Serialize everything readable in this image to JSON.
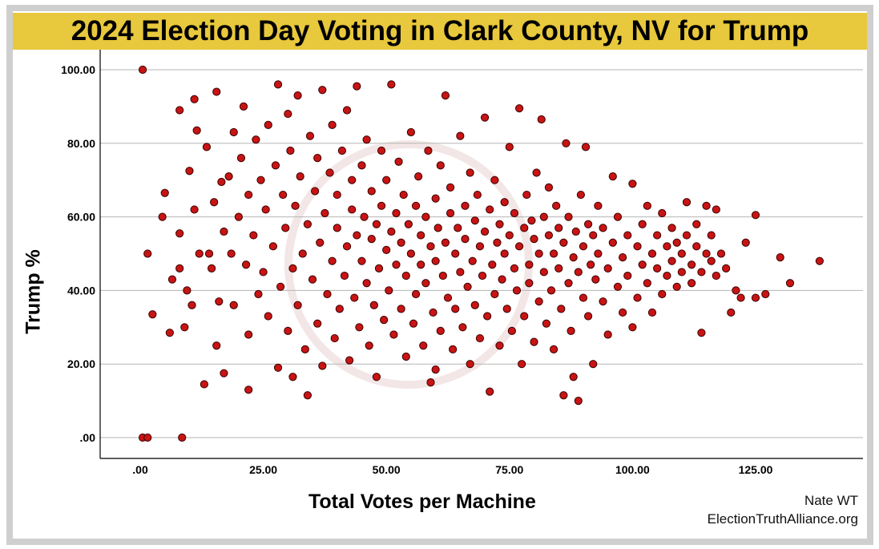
{
  "chart_data": {
    "type": "scatter",
    "title": "2024 Election Day Voting in Clark County, NV for Trump",
    "xlabel": "Total Votes per Machine",
    "ylabel": "Trump %",
    "xlim": [
      -8,
      147
    ],
    "ylim": [
      -6,
      105
    ],
    "xticks": [
      0,
      25,
      50,
      75,
      100,
      125
    ],
    "xtick_labels": [
      ".00",
      "25.00",
      "50.00",
      "75.00",
      "100.00",
      "125.00"
    ],
    "yticks": [
      0,
      20,
      40,
      60,
      80,
      100
    ],
    "ytick_labels": [
      ".00",
      "20.00",
      "40.00",
      "60.00",
      "80.00",
      "100.00"
    ],
    "grid": "horizontal",
    "marker_color": "#c81414",
    "marker_edge": "#3a0000",
    "points": [
      [
        0.5,
        100
      ],
      [
        0.5,
        0
      ],
      [
        1.5,
        0
      ],
      [
        8.5,
        0
      ],
      [
        1.5,
        50
      ],
      [
        2.5,
        33.5
      ],
      [
        6,
        28.5
      ],
      [
        4.5,
        60
      ],
      [
        5,
        66.5
      ],
      [
        6.5,
        43
      ],
      [
        8,
        89
      ],
      [
        8,
        55.5
      ],
      [
        8,
        46
      ],
      [
        9,
        30
      ],
      [
        9.5,
        40
      ],
      [
        10,
        72.5
      ],
      [
        10.5,
        36
      ],
      [
        11,
        62
      ],
      [
        11,
        92
      ],
      [
        11.5,
        83.5
      ],
      [
        12,
        50
      ],
      [
        13,
        14.5
      ],
      [
        13.5,
        79
      ],
      [
        14,
        50
      ],
      [
        14.5,
        46
      ],
      [
        15,
        64
      ],
      [
        15.5,
        25
      ],
      [
        15.5,
        94
      ],
      [
        16,
        37
      ],
      [
        16.5,
        69.5
      ],
      [
        17,
        17.5
      ],
      [
        17,
        56
      ],
      [
        18,
        71
      ],
      [
        18.5,
        50
      ],
      [
        19,
        83
      ],
      [
        19,
        36
      ],
      [
        20,
        60
      ],
      [
        20.5,
        76
      ],
      [
        21,
        90
      ],
      [
        21.5,
        47
      ],
      [
        22,
        13
      ],
      [
        22,
        66
      ],
      [
        22,
        28
      ],
      [
        23,
        55
      ],
      [
        23.5,
        81
      ],
      [
        24,
        39
      ],
      [
        24.5,
        70
      ],
      [
        25,
        45
      ],
      [
        25.5,
        62
      ],
      [
        26,
        85
      ],
      [
        26,
        33
      ],
      [
        27,
        52
      ],
      [
        27.5,
        74
      ],
      [
        28,
        19
      ],
      [
        28,
        96
      ],
      [
        28.5,
        41
      ],
      [
        29,
        66
      ],
      [
        29.5,
        57
      ],
      [
        30,
        29
      ],
      [
        30,
        88
      ],
      [
        30.5,
        78
      ],
      [
        31,
        46
      ],
      [
        31,
        16.5
      ],
      [
        31.5,
        63
      ],
      [
        32,
        36
      ],
      [
        32,
        93
      ],
      [
        32.5,
        71
      ],
      [
        33,
        50
      ],
      [
        33.5,
        24
      ],
      [
        34,
        11.5
      ],
      [
        34,
        58
      ],
      [
        34.5,
        82
      ],
      [
        35,
        43
      ],
      [
        35.5,
        67
      ],
      [
        36,
        31
      ],
      [
        36,
        76
      ],
      [
        36.5,
        53
      ],
      [
        37,
        94.5
      ],
      [
        37,
        19.5
      ],
      [
        37.5,
        61
      ],
      [
        38,
        39
      ],
      [
        38.5,
        72
      ],
      [
        39,
        48
      ],
      [
        39,
        85
      ],
      [
        39.5,
        27
      ],
      [
        40,
        57
      ],
      [
        40,
        66
      ],
      [
        40.5,
        35
      ],
      [
        41,
        78
      ],
      [
        41.5,
        44
      ],
      [
        42,
        52
      ],
      [
        42,
        89
      ],
      [
        42.5,
        21
      ],
      [
        43,
        62
      ],
      [
        43,
        70
      ],
      [
        43.5,
        38
      ],
      [
        44,
        55
      ],
      [
        44,
        95.5
      ],
      [
        44.5,
        30
      ],
      [
        45,
        48
      ],
      [
        45,
        74
      ],
      [
        45.5,
        60
      ],
      [
        46,
        42
      ],
      [
        46,
        81
      ],
      [
        46.5,
        25
      ],
      [
        47,
        54
      ],
      [
        47,
        67
      ],
      [
        47.5,
        36
      ],
      [
        48,
        16.5
      ],
      [
        48,
        58
      ],
      [
        48.5,
        46
      ],
      [
        49,
        63
      ],
      [
        49,
        78
      ],
      [
        49.5,
        32
      ],
      [
        50,
        51
      ],
      [
        50,
        70
      ],
      [
        50.5,
        40
      ],
      [
        51,
        96
      ],
      [
        51,
        56
      ],
      [
        51.5,
        28
      ],
      [
        52,
        61
      ],
      [
        52,
        47
      ],
      [
        52.5,
        75
      ],
      [
        53,
        35
      ],
      [
        53,
        53
      ],
      [
        53.5,
        66
      ],
      [
        54,
        22
      ],
      [
        54,
        44
      ],
      [
        54.5,
        58
      ],
      [
        55,
        83
      ],
      [
        55,
        50
      ],
      [
        55.5,
        31
      ],
      [
        56,
        63
      ],
      [
        56,
        39
      ],
      [
        56.5,
        71
      ],
      [
        57,
        47
      ],
      [
        57,
        55
      ],
      [
        57.5,
        25
      ],
      [
        58,
        60
      ],
      [
        58,
        42
      ],
      [
        58.5,
        78
      ],
      [
        59,
        15
      ],
      [
        59,
        52
      ],
      [
        59.5,
        34
      ],
      [
        60,
        65
      ],
      [
        60,
        18.5
      ],
      [
        60,
        48
      ],
      [
        60.5,
        57
      ],
      [
        61,
        29
      ],
      [
        61,
        74
      ],
      [
        61.5,
        44
      ],
      [
        62,
        93
      ],
      [
        62,
        53
      ],
      [
        62.5,
        38
      ],
      [
        63,
        61
      ],
      [
        63,
        68
      ],
      [
        63.5,
        24
      ],
      [
        64,
        50
      ],
      [
        64,
        35
      ],
      [
        64.5,
        57
      ],
      [
        65,
        82
      ],
      [
        65,
        45
      ],
      [
        65.5,
        30
      ],
      [
        66,
        63
      ],
      [
        66,
        54
      ],
      [
        66.5,
        41
      ],
      [
        67,
        72
      ],
      [
        67,
        20
      ],
      [
        67.5,
        48
      ],
      [
        68,
        59
      ],
      [
        68,
        36
      ],
      [
        68.5,
        66
      ],
      [
        69,
        27
      ],
      [
        69,
        52
      ],
      [
        69.5,
        44
      ],
      [
        70,
        87
      ],
      [
        70,
        56
      ],
      [
        70.5,
        33
      ],
      [
        71,
        12.5
      ],
      [
        71,
        62
      ],
      [
        71.5,
        47
      ],
      [
        72,
        39
      ],
      [
        72,
        70
      ],
      [
        72.5,
        53
      ],
      [
        73,
        58
      ],
      [
        73,
        25
      ],
      [
        73.5,
        43
      ],
      [
        74,
        64
      ],
      [
        74,
        50
      ],
      [
        74.5,
        35
      ],
      [
        75,
        79
      ],
      [
        75,
        55
      ],
      [
        75.5,
        29
      ],
      [
        76,
        46
      ],
      [
        76,
        61
      ],
      [
        76.5,
        40
      ],
      [
        77,
        89.5
      ],
      [
        77,
        52
      ],
      [
        77.5,
        20
      ],
      [
        78,
        57
      ],
      [
        78,
        33
      ],
      [
        78.5,
        66
      ],
      [
        79,
        47
      ],
      [
        79,
        42
      ],
      [
        79.5,
        59
      ],
      [
        80,
        54
      ],
      [
        80,
        26
      ],
      [
        80.5,
        72
      ],
      [
        81,
        37
      ],
      [
        81,
        50
      ],
      [
        81.5,
        86.5
      ],
      [
        82,
        60
      ],
      [
        82,
        45
      ],
      [
        82.5,
        31
      ],
      [
        83,
        55
      ],
      [
        83,
        68
      ],
      [
        83.5,
        40
      ],
      [
        84,
        50
      ],
      [
        84,
        24
      ],
      [
        84.5,
        63
      ],
      [
        85,
        46
      ],
      [
        85,
        57
      ],
      [
        85.5,
        35
      ],
      [
        86,
        11.5
      ],
      [
        86,
        53
      ],
      [
        86.5,
        80
      ],
      [
        87,
        42
      ],
      [
        87,
        60
      ],
      [
        87.5,
        29
      ],
      [
        88,
        49
      ],
      [
        88,
        16.5
      ],
      [
        88.5,
        56
      ],
      [
        89,
        10
      ],
      [
        89,
        45
      ],
      [
        89.5,
        66
      ],
      [
        90,
        38
      ],
      [
        90,
        52
      ],
      [
        90.5,
        79
      ],
      [
        91,
        58
      ],
      [
        91,
        33
      ],
      [
        91.5,
        47
      ],
      [
        92,
        20
      ],
      [
        92,
        55
      ],
      [
        92.5,
        43
      ],
      [
        93,
        63
      ],
      [
        93,
        50
      ],
      [
        94,
        37
      ],
      [
        94,
        57
      ],
      [
        95,
        46
      ],
      [
        95,
        28
      ],
      [
        96,
        53
      ],
      [
        96,
        71
      ],
      [
        97,
        41
      ],
      [
        97,
        60
      ],
      [
        98,
        49
      ],
      [
        98,
        34
      ],
      [
        99,
        55
      ],
      [
        99,
        44
      ],
      [
        100,
        69
      ],
      [
        100,
        30
      ],
      [
        101,
        52
      ],
      [
        101,
        38
      ],
      [
        102,
        58
      ],
      [
        102,
        47
      ],
      [
        103,
        42
      ],
      [
        103,
        63
      ],
      [
        104,
        50
      ],
      [
        104,
        34
      ],
      [
        105,
        55
      ],
      [
        105,
        46
      ],
      [
        106,
        39
      ],
      [
        106,
        61
      ],
      [
        107,
        52
      ],
      [
        107,
        44
      ],
      [
        108,
        48
      ],
      [
        108,
        57
      ],
      [
        109,
        41
      ],
      [
        109,
        53
      ],
      [
        110,
        45
      ],
      [
        110,
        50
      ],
      [
        111,
        55
      ],
      [
        111,
        64
      ],
      [
        112,
        47
      ],
      [
        112,
        42
      ],
      [
        113,
        52
      ],
      [
        113,
        58
      ],
      [
        114,
        28.5
      ],
      [
        114,
        45
      ],
      [
        115,
        50
      ],
      [
        115,
        63
      ],
      [
        116,
        48
      ],
      [
        116,
        55
      ],
      [
        117,
        44
      ],
      [
        117,
        62
      ],
      [
        118,
        50
      ],
      [
        119,
        46
      ],
      [
        120,
        34
      ],
      [
        121,
        40
      ],
      [
        122,
        38
      ],
      [
        123,
        53
      ],
      [
        125,
        60.5
      ],
      [
        125,
        38
      ],
      [
        127,
        39
      ],
      [
        130,
        49
      ],
      [
        132,
        42
      ],
      [
        138,
        48
      ]
    ]
  },
  "credits": {
    "author": "Nate WT",
    "site": "ElectionTruthAlliance.org"
  }
}
